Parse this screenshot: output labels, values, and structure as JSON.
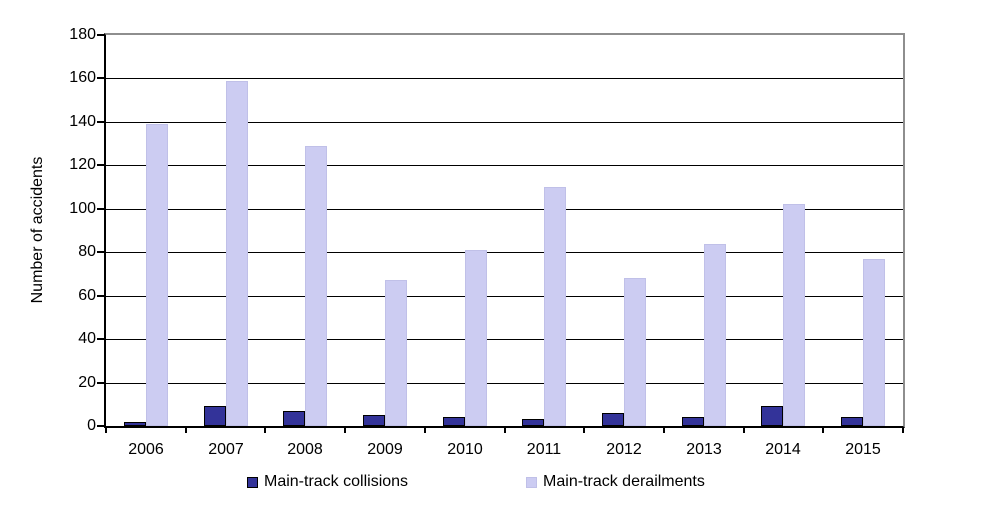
{
  "chart_data": {
    "type": "bar",
    "title": "",
    "xlabel": "",
    "ylabel": "Number of accidents",
    "categories": [
      "2006",
      "2007",
      "2008",
      "2009",
      "2010",
      "2011",
      "2012",
      "2013",
      "2014",
      "2015"
    ],
    "series": [
      {
        "name": "Main-track collisions",
        "color": "#333399",
        "border_color": "#000000",
        "values": [
          2,
          9,
          7,
          5,
          4,
          3,
          6,
          4,
          9,
          4
        ]
      },
      {
        "name": "Main-track derailments",
        "color": "#CCCCF2",
        "border_color": "#C0C0E8",
        "values": [
          139,
          159,
          129,
          67,
          81,
          110,
          68,
          84,
          102,
          77
        ]
      }
    ],
    "ylim": [
      0,
      180
    ],
    "ytick_step": 20,
    "grid": "horizontal",
    "legend_position": "bottom"
  },
  "colors": {
    "axis": "#000000",
    "plot_border": "#8E8E8E",
    "gridline": "#000000",
    "text": "#000000",
    "background": "#FFFFFF"
  }
}
